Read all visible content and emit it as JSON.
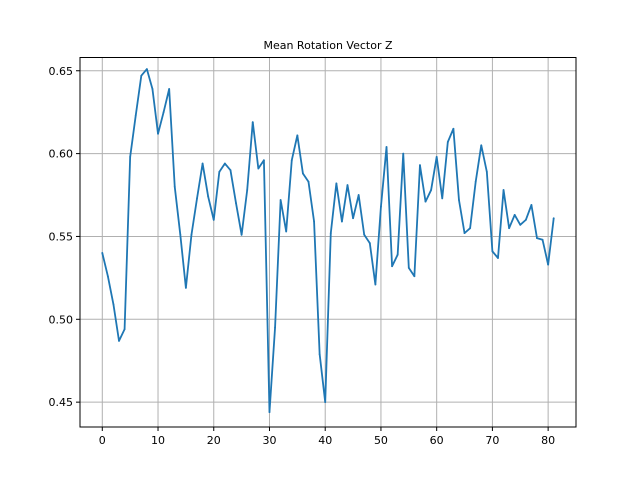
{
  "chart_data": {
    "type": "line",
    "title": "Mean Rotation Vector Z",
    "xlabel": "",
    "ylabel": "",
    "xlim": [
      -4,
      85
    ],
    "ylim": [
      0.435,
      0.658
    ],
    "grid": true,
    "xticks": [
      0,
      10,
      20,
      30,
      40,
      50,
      60,
      70,
      80
    ],
    "xtick_labels": [
      "0",
      "10",
      "20",
      "30",
      "40",
      "50",
      "60",
      "70",
      "80"
    ],
    "yticks": [
      0.45,
      0.5,
      0.55,
      0.6,
      0.65
    ],
    "ytick_labels": [
      "0.45",
      "0.50",
      "0.55",
      "0.60",
      "0.65"
    ],
    "series": [
      {
        "color": "#1f77b4",
        "x": [
          0,
          1,
          2,
          3,
          4,
          5,
          6,
          7,
          8,
          9,
          10,
          11,
          12,
          13,
          14,
          15,
          16,
          17,
          18,
          19,
          20,
          21,
          22,
          23,
          24,
          25,
          26,
          27,
          28,
          29,
          30,
          31,
          32,
          33,
          34,
          35,
          36,
          37,
          38,
          39,
          40,
          41,
          42,
          43,
          44,
          45,
          46,
          47,
          48,
          49,
          50,
          51,
          52,
          53,
          54,
          55,
          56,
          57,
          58,
          59,
          60,
          61,
          62,
          63,
          64,
          65,
          66,
          67,
          68,
          69,
          70,
          71,
          72,
          73,
          74,
          75,
          76,
          77,
          78,
          79,
          80,
          81
        ],
        "values": [
          0.54,
          0.526,
          0.509,
          0.487,
          0.494,
          0.598,
          0.623,
          0.647,
          0.651,
          0.639,
          0.612,
          0.625,
          0.639,
          0.58,
          0.551,
          0.519,
          0.551,
          0.573,
          0.594,
          0.574,
          0.56,
          0.589,
          0.594,
          0.59,
          0.57,
          0.551,
          0.578,
          0.619,
          0.591,
          0.596,
          0.444,
          0.495,
          0.572,
          0.553,
          0.596,
          0.611,
          0.588,
          0.583,
          0.559,
          0.479,
          0.45,
          0.552,
          0.582,
          0.559,
          0.581,
          0.561,
          0.575,
          0.551,
          0.546,
          0.521,
          0.568,
          0.604,
          0.532,
          0.539,
          0.6,
          0.531,
          0.526,
          0.593,
          0.571,
          0.578,
          0.598,
          0.573,
          0.607,
          0.615,
          0.572,
          0.552,
          0.555,
          0.583,
          0.605,
          0.589,
          0.541,
          0.537,
          0.578,
          0.555,
          0.563,
          0.557,
          0.56,
          0.569,
          0.549,
          0.548,
          0.533,
          0.561
        ]
      }
    ]
  }
}
